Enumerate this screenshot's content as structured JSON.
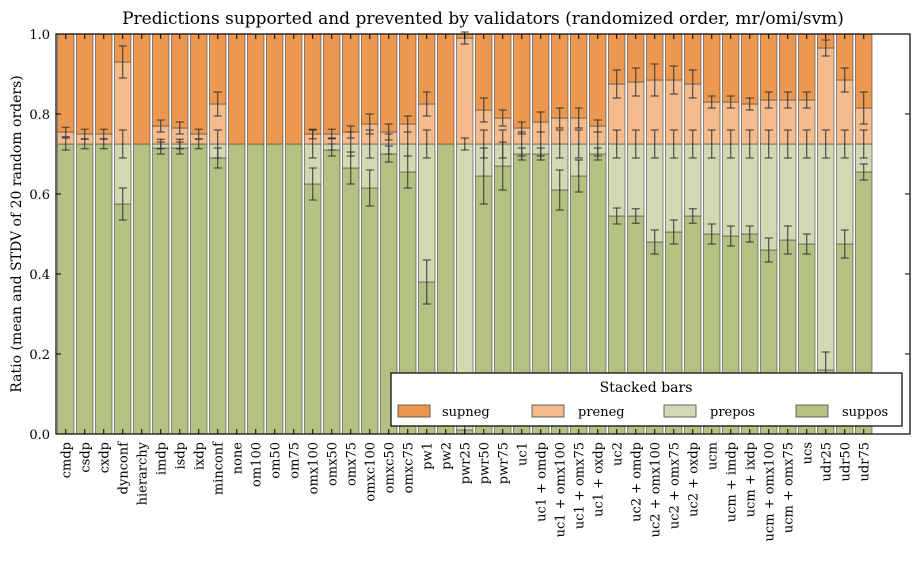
{
  "chart_data": {
    "type": "bar",
    "stacked": true,
    "title": "Predictions supported and prevented by validators (randomized order, mr/omi/svm)",
    "xlabel": "",
    "ylabel": "Ratio (mean and STDV of 20 random orders)",
    "ylim": [
      0,
      1.0
    ],
    "yticks": [
      "0.0",
      "0.2",
      "0.4",
      "0.6",
      "0.8",
      "1.0"
    ],
    "legend": {
      "title": "Stacked bars",
      "placement": "lower-right",
      "entries": [
        "supneg",
        "preneg",
        "prepos",
        "suppos"
      ]
    },
    "colors": {
      "supneg": "#ec9850",
      "preneg": "#f4bb8c",
      "prepos": "#d0d9b2",
      "suppos": "#b3c183",
      "edge": "#444444",
      "errorbar": "#333333"
    },
    "categories": [
      "cmdp",
      "csdp",
      "cxdp",
      "dynconf",
      "hierarchy",
      "imdp",
      "isdp",
      "ixdp",
      "minconf",
      "none",
      "om100",
      "om50",
      "om75",
      "omx100",
      "omx50",
      "omx75",
      "omxc100",
      "omxc50",
      "omxc75",
      "pw1",
      "pw2",
      "pwr25",
      "pwr50",
      "pwr75",
      "uc1",
      "uc1 + omdp",
      "uc1 + omx100",
      "uc1 + omx75",
      "uc1 + oxdp",
      "uc2",
      "uc2 + omdp",
      "uc2 + omx100",
      "uc2 + omx75",
      "uc2 + oxdp",
      "ucm",
      "ucm + imdp",
      "ucm + ixdp",
      "ucm + omx100",
      "ucm + omx75",
      "ucs",
      "udr25",
      "udr50",
      "udr75"
    ],
    "series": [
      {
        "name": "suppos",
        "values": [
          0.725,
          0.725,
          0.725,
          0.575,
          0.725,
          0.715,
          0.715,
          0.725,
          0.69,
          0.725,
          0.725,
          0.725,
          0.725,
          0.625,
          0.71,
          0.665,
          0.615,
          0.7,
          0.655,
          0.38,
          0.725,
          0.01,
          0.645,
          0.67,
          0.7,
          0.7,
          0.61,
          0.645,
          0.7,
          0.545,
          0.545,
          0.48,
          0.505,
          0.545,
          0.5,
          0.495,
          0.5,
          0.46,
          0.485,
          0.475,
          0.16,
          0.475,
          0.655
        ]
      },
      {
        "name": "prepos",
        "values": [
          0.0,
          0.0,
          0.0,
          0.15,
          0.0,
          0.01,
          0.01,
          0.0,
          0.035,
          0.0,
          0.0,
          0.0,
          0.0,
          0.1,
          0.015,
          0.06,
          0.11,
          0.025,
          0.07,
          0.345,
          0.0,
          0.715,
          0.08,
          0.055,
          0.025,
          0.025,
          0.115,
          0.08,
          0.025,
          0.18,
          0.18,
          0.245,
          0.22,
          0.18,
          0.225,
          0.23,
          0.225,
          0.265,
          0.24,
          0.25,
          0.565,
          0.25,
          0.07
        ]
      },
      {
        "name": "preneg",
        "values": [
          0.03,
          0.025,
          0.025,
          0.205,
          0.0,
          0.045,
          0.04,
          0.025,
          0.1,
          0.0,
          0.0,
          0.0,
          0.0,
          0.025,
          0.025,
          0.03,
          0.05,
          0.03,
          0.05,
          0.1,
          0.0,
          0.265,
          0.085,
          0.065,
          0.04,
          0.055,
          0.065,
          0.065,
          0.045,
          0.15,
          0.155,
          0.16,
          0.16,
          0.15,
          0.105,
          0.105,
          0.1,
          0.11,
          0.11,
          0.11,
          0.24,
          0.16,
          0.09
        ]
      },
      {
        "name": "supneg",
        "values": [
          0.245,
          0.25,
          0.25,
          0.07,
          0.275,
          0.23,
          0.235,
          0.25,
          0.175,
          0.275,
          0.275,
          0.275,
          0.275,
          0.25,
          0.25,
          0.245,
          0.225,
          0.245,
          0.225,
          0.175,
          0.275,
          0.01,
          0.19,
          0.21,
          0.235,
          0.22,
          0.21,
          0.21,
          0.23,
          0.125,
          0.12,
          0.115,
          0.115,
          0.125,
          0.17,
          0.17,
          0.175,
          0.165,
          0.165,
          0.165,
          0.035,
          0.115,
          0.185
        ]
      }
    ],
    "errorbars": {
      "suppos": [
        0.015,
        0.012,
        0.012,
        0.04,
        0.0,
        0.015,
        0.015,
        0.012,
        0.025,
        0.0,
        0.0,
        0.0,
        0.0,
        0.04,
        0.015,
        0.04,
        0.045,
        0.02,
        0.04,
        0.055,
        0.0,
        0.01,
        0.07,
        0.06,
        0.015,
        0.015,
        0.05,
        0.04,
        0.015,
        0.02,
        0.018,
        0.03,
        0.03,
        0.018,
        0.025,
        0.025,
        0.02,
        0.03,
        0.035,
        0.025,
        0.045,
        0.035,
        0.02
      ],
      "prepos": [
        0.0,
        0.0,
        0.0,
        0.035,
        0.0,
        0.012,
        0.012,
        0.0,
        0.035,
        0.0,
        0.0,
        0.0,
        0.0,
        0.035,
        0.015,
        0.03,
        0.035,
        0.025,
        0.03,
        0.035,
        0.0,
        0.015,
        0.035,
        0.035,
        0.03,
        0.03,
        0.035,
        0.035,
        0.03,
        0.035,
        0.035,
        0.035,
        0.035,
        0.035,
        0.035,
        0.035,
        0.035,
        0.035,
        0.035,
        0.035,
        0.035,
        0.035,
        0.035
      ],
      "preneg": [
        0.012,
        0.012,
        0.012,
        0.04,
        0.0,
        0.015,
        0.015,
        0.012,
        0.03,
        0.0,
        0.0,
        0.0,
        0.0,
        0.012,
        0.012,
        0.015,
        0.025,
        0.02,
        0.02,
        0.03,
        0.0,
        0.015,
        0.03,
        0.02,
        0.015,
        0.025,
        0.025,
        0.025,
        0.015,
        0.035,
        0.035,
        0.04,
        0.035,
        0.035,
        0.015,
        0.015,
        0.015,
        0.02,
        0.02,
        0.02,
        0.02,
        0.03,
        0.04
      ]
    }
  }
}
